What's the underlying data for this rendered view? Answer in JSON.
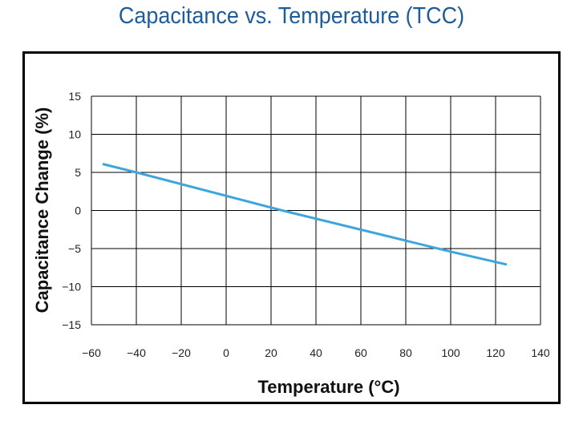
{
  "chart_data": {
    "type": "line",
    "title": "Capacitance vs. Temperature (TCC)",
    "xlabel": "Temperature (°C)",
    "ylabel": "Capacitance Change (%)",
    "xlim": [
      -60,
      140
    ],
    "ylim": [
      -15,
      15
    ],
    "xticks": [
      -60,
      -40,
      -20,
      0,
      20,
      40,
      60,
      80,
      100,
      120,
      140
    ],
    "yticks": [
      15,
      10,
      5,
      0,
      -5,
      -10,
      -15
    ],
    "grid": true,
    "colors": {
      "line": "#3ea6dc",
      "title": "#1f5c99"
    },
    "series": [
      {
        "x": [
          -55,
          -40,
          25,
          100,
          125
        ],
        "y": [
          6.1,
          5.0,
          0.0,
          -5.4,
          -7.1
        ]
      }
    ]
  }
}
